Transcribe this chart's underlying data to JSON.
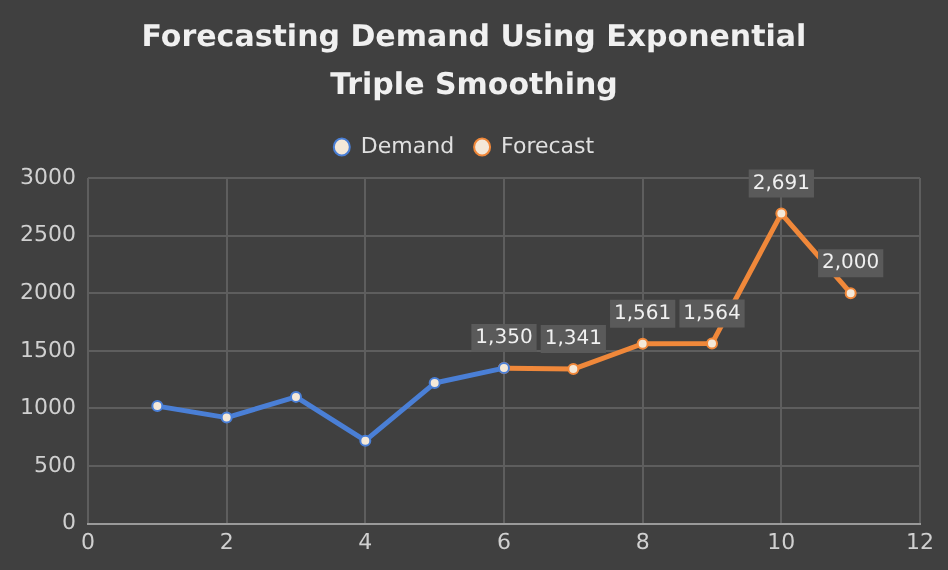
{
  "chart_data": {
    "type": "line",
    "title": "Forecasting Demand Using Exponential Triple Smoothing",
    "xlim": [
      0,
      12
    ],
    "xticks": [
      0,
      2,
      4,
      6,
      8,
      10,
      12
    ],
    "ylim": [
      0,
      3000
    ],
    "yticks": [
      0,
      500,
      1000,
      1500,
      2000,
      2500,
      3000
    ],
    "grid": true,
    "legend": "top",
    "marker": "circle",
    "line_style": "solid",
    "series": [
      {
        "name": "Demand",
        "color": "#4a7fd6",
        "x": [
          1,
          2,
          3,
          4,
          5,
          6
        ],
        "values": [
          1020,
          920,
          1100,
          720,
          1220,
          1350
        ]
      },
      {
        "name": "Forecast",
        "color": "#f0883a",
        "x": [
          6,
          7,
          8,
          9,
          10,
          11
        ],
        "values": [
          1350,
          1341,
          1561,
          1564,
          2691,
          2000
        ],
        "value_labels": [
          "1,350",
          "1,341",
          "1,561",
          "1,564",
          "2,691",
          "2,000"
        ]
      }
    ]
  }
}
